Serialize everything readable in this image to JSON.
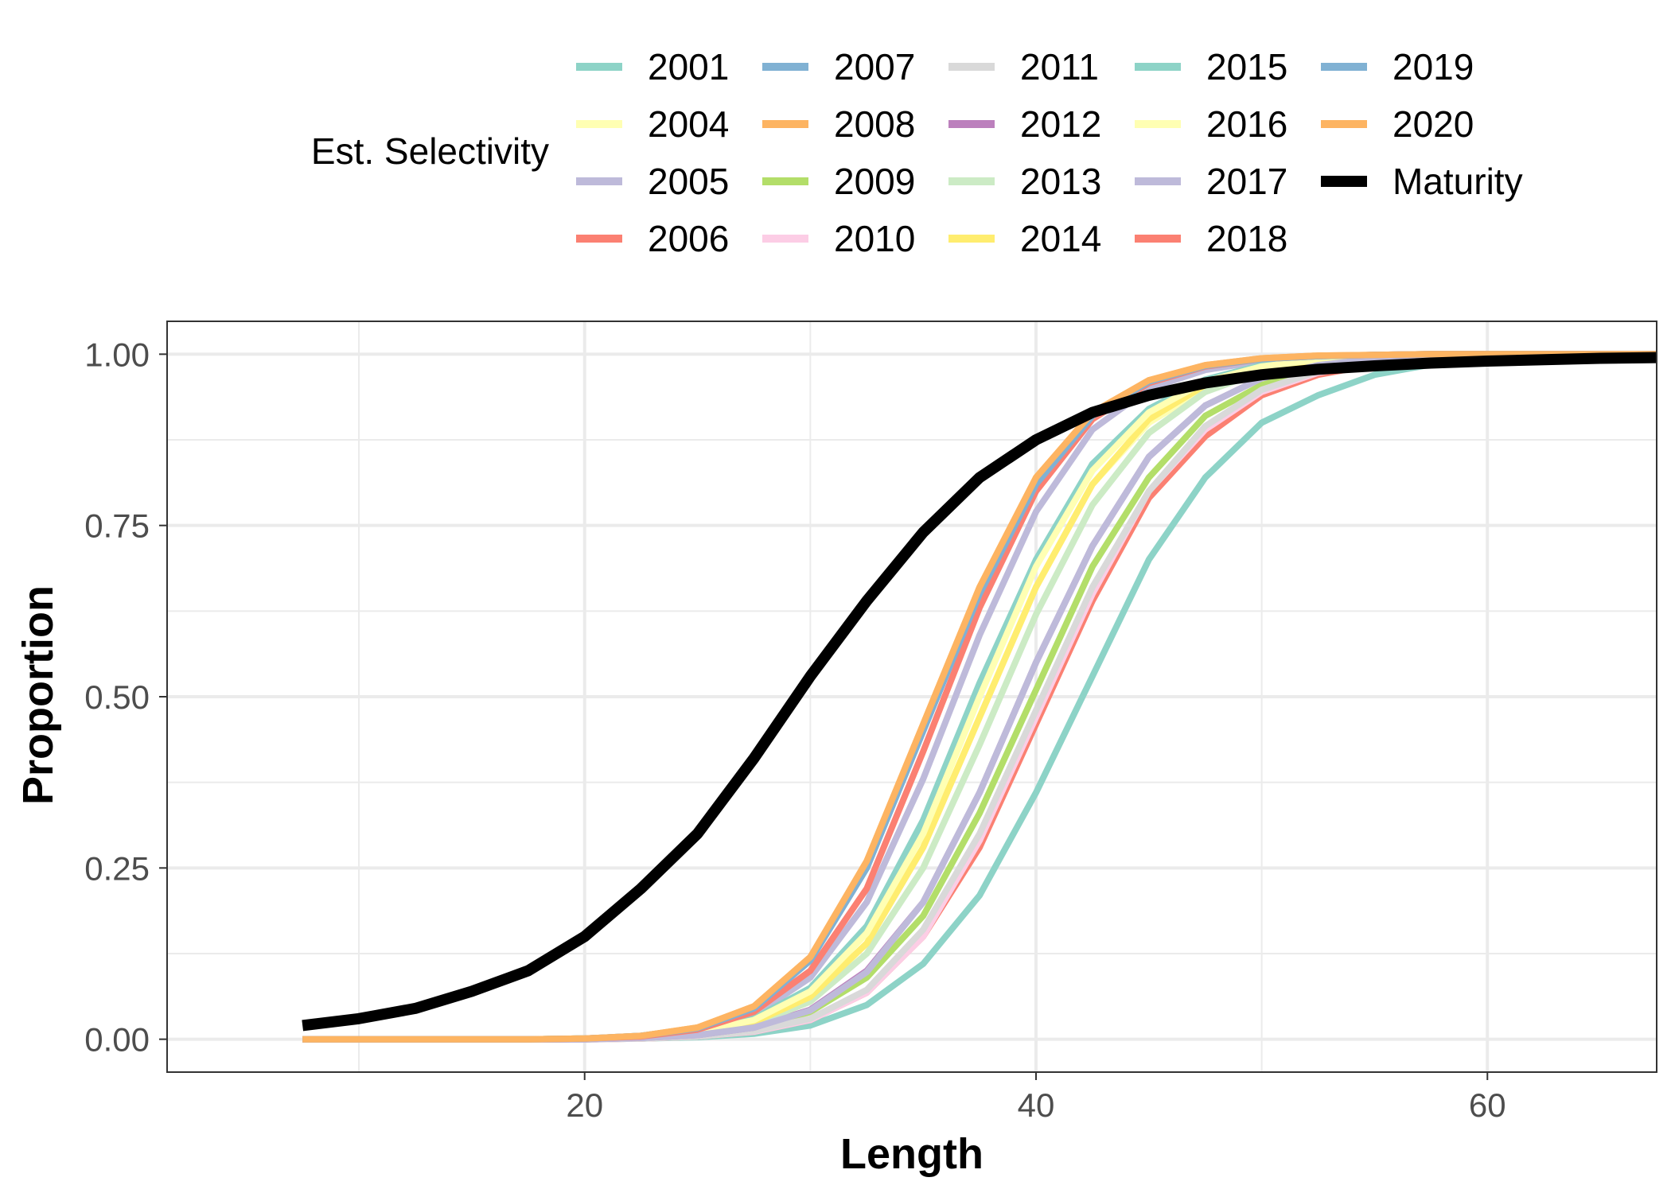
{
  "chart_data": {
    "type": "line",
    "xlabel": "Length",
    "ylabel": "Proportion",
    "xlim": [
      1.5,
      67.5
    ],
    "ylim": [
      -0.048,
      1.048
    ],
    "x_ticks": [
      20,
      40,
      60
    ],
    "x_tick_labels": [
      "20",
      "40",
      "60"
    ],
    "x_minor_ticks": [
      10,
      30,
      50
    ],
    "y_ticks": [
      0,
      0.25,
      0.5,
      0.75,
      1
    ],
    "y_tick_labels": [
      "0.00",
      "0.25",
      "0.50",
      "0.75",
      "1.00"
    ],
    "y_minor_ticks": [
      0.125,
      0.375,
      0.625,
      0.875
    ],
    "grid": true,
    "legend": {
      "title": "Est. Selectivity",
      "placement": "top",
      "columns": 5,
      "rows": 4
    },
    "x": [
      7.5,
      10,
      12.5,
      15,
      17.5,
      20,
      22.5,
      25,
      27.5,
      30,
      32.5,
      35,
      37.5,
      40,
      42.5,
      45,
      47.5,
      50,
      52.5,
      55,
      57.5,
      60,
      62.5,
      65,
      67.5
    ],
    "series": [
      {
        "name": "2001",
        "color": "#8DD3C7",
        "values": [
          0.0,
          0.0,
          0.0,
          0.0,
          0.0,
          0.0,
          0.001,
          0.003,
          0.008,
          0.02,
          0.05,
          0.11,
          0.21,
          0.36,
          0.53,
          0.7,
          0.82,
          0.9,
          0.94,
          0.97,
          0.985,
          0.993,
          0.997,
          0.998,
          0.999
        ]
      },
      {
        "name": "2004",
        "color": "#FFFFB3",
        "values": [
          0.0,
          0.0,
          0.0,
          0.0,
          0.0,
          0.001,
          0.003,
          0.009,
          0.025,
          0.06,
          0.14,
          0.28,
          0.47,
          0.66,
          0.81,
          0.9,
          0.95,
          0.975,
          0.988,
          0.994,
          0.997,
          0.999,
          0.999,
          1.0,
          1.0
        ]
      },
      {
        "name": "2005",
        "color": "#BEBADA",
        "values": [
          0.0,
          0.0,
          0.0,
          0.0,
          0.0,
          0.001,
          0.004,
          0.013,
          0.035,
          0.09,
          0.2,
          0.38,
          0.59,
          0.77,
          0.89,
          0.95,
          0.977,
          0.99,
          0.996,
          0.998,
          0.999,
          1.0,
          1.0,
          1.0,
          1.0
        ]
      },
      {
        "name": "2006",
        "color": "#FB8072",
        "values": [
          0.0,
          0.0,
          0.0,
          0.0,
          0.0,
          0.0,
          0.001,
          0.004,
          0.011,
          0.028,
          0.068,
          0.15,
          0.28,
          0.46,
          0.64,
          0.79,
          0.88,
          0.94,
          0.97,
          0.985,
          0.993,
          0.997,
          0.998,
          0.999,
          1.0
        ]
      },
      {
        "name": "2007",
        "color": "#80B1D3",
        "values": [
          0.0,
          0.0,
          0.0,
          0.0,
          0.0,
          0.001,
          0.005,
          0.016,
          0.045,
          0.115,
          0.25,
          0.45,
          0.65,
          0.81,
          0.91,
          0.96,
          0.983,
          0.993,
          0.997,
          0.999,
          1.0,
          1.0,
          1.0,
          1.0,
          1.0
        ]
      },
      {
        "name": "2008",
        "color": "#FDB462",
        "values": [
          0.0,
          0.0,
          0.0,
          0.0,
          0.0,
          0.001,
          0.005,
          0.017,
          0.048,
          0.12,
          0.26,
          0.46,
          0.66,
          0.82,
          0.915,
          0.962,
          0.984,
          0.994,
          0.998,
          0.999,
          1.0,
          1.0,
          1.0,
          1.0,
          1.0
        ]
      },
      {
        "name": "2009",
        "color": "#B3DE69",
        "values": [
          0.0,
          0.0,
          0.0,
          0.0,
          0.0,
          0.0,
          0.002,
          0.006,
          0.016,
          0.04,
          0.09,
          0.18,
          0.33,
          0.51,
          0.69,
          0.82,
          0.91,
          0.955,
          0.978,
          0.99,
          0.995,
          0.998,
          0.999,
          1.0,
          1.0
        ]
      },
      {
        "name": "2010",
        "color": "#FCCDE5",
        "values": [
          0.0,
          0.0,
          0.0,
          0.0,
          0.0,
          0.0,
          0.001,
          0.004,
          0.011,
          0.028,
          0.068,
          0.15,
          0.29,
          0.47,
          0.65,
          0.8,
          0.89,
          0.945,
          0.973,
          0.987,
          0.994,
          0.997,
          0.999,
          1.0,
          1.0
        ]
      },
      {
        "name": "2011",
        "color": "#D9D9D9",
        "values": [
          0.0,
          0.0,
          0.0,
          0.0,
          0.0,
          0.0,
          0.001,
          0.004,
          0.012,
          0.03,
          0.072,
          0.16,
          0.3,
          0.48,
          0.66,
          0.8,
          0.895,
          0.948,
          0.975,
          0.988,
          0.994,
          0.997,
          0.999,
          1.0,
          1.0
        ]
      },
      {
        "name": "2012",
        "color": "#BC80BD",
        "values": [
          0.0,
          0.0,
          0.0,
          0.0,
          0.0,
          0.0,
          0.002,
          0.006,
          0.017,
          0.043,
          0.1,
          0.2,
          0.36,
          0.55,
          0.72,
          0.85,
          0.925,
          0.965,
          0.984,
          0.993,
          0.997,
          0.999,
          1.0,
          1.0,
          1.0
        ]
      },
      {
        "name": "2013",
        "color": "#CCEBC5",
        "values": [
          0.0,
          0.0,
          0.0,
          0.0,
          0.0,
          0.001,
          0.003,
          0.008,
          0.022,
          0.055,
          0.125,
          0.25,
          0.43,
          0.62,
          0.78,
          0.885,
          0.945,
          0.975,
          0.989,
          0.995,
          0.998,
          0.999,
          1.0,
          1.0,
          1.0
        ]
      },
      {
        "name": "2014",
        "color": "#FFED6F",
        "values": [
          0.0,
          0.0,
          0.0,
          0.0,
          0.0,
          0.001,
          0.003,
          0.009,
          0.025,
          0.062,
          0.14,
          0.28,
          0.47,
          0.66,
          0.81,
          0.905,
          0.955,
          0.98,
          0.991,
          0.996,
          0.998,
          0.999,
          1.0,
          1.0,
          1.0
        ]
      },
      {
        "name": "2015",
        "color": "#8DD3C7",
        "values": [
          0.0,
          0.0,
          0.0,
          0.0,
          0.0,
          0.001,
          0.003,
          0.011,
          0.03,
          0.075,
          0.165,
          0.32,
          0.52,
          0.7,
          0.84,
          0.92,
          0.963,
          0.984,
          0.993,
          0.997,
          0.999,
          1.0,
          1.0,
          1.0,
          1.0
        ]
      },
      {
        "name": "2016",
        "color": "#FFFFB3",
        "values": [
          0.0,
          0.0,
          0.0,
          0.0,
          0.0,
          0.001,
          0.003,
          0.01,
          0.028,
          0.07,
          0.155,
          0.3,
          0.5,
          0.69,
          0.83,
          0.915,
          0.96,
          0.982,
          0.992,
          0.997,
          0.999,
          1.0,
          1.0,
          1.0,
          1.0
        ]
      },
      {
        "name": "2017",
        "color": "#BEBADA",
        "values": [
          0.0,
          0.0,
          0.0,
          0.0,
          0.0,
          0.0,
          0.002,
          0.006,
          0.017,
          0.042,
          0.098,
          0.2,
          0.36,
          0.55,
          0.72,
          0.85,
          0.925,
          0.965,
          0.984,
          0.993,
          0.997,
          0.999,
          1.0,
          1.0,
          1.0
        ]
      },
      {
        "name": "2018",
        "color": "#FB8072",
        "values": [
          0.0,
          0.0,
          0.0,
          0.0,
          0.0,
          0.001,
          0.004,
          0.014,
          0.04,
          0.1,
          0.22,
          0.42,
          0.63,
          0.8,
          0.905,
          0.958,
          0.982,
          0.993,
          0.997,
          0.999,
          1.0,
          1.0,
          1.0,
          1.0,
          1.0
        ]
      },
      {
        "name": "2019",
        "color": "#80B1D3",
        "values": [
          0.0,
          0.0,
          0.0,
          0.0,
          0.0,
          0.001,
          0.005,
          0.016,
          0.045,
          0.115,
          0.25,
          0.45,
          0.65,
          0.81,
          0.91,
          0.96,
          0.983,
          0.993,
          0.997,
          0.999,
          1.0,
          1.0,
          1.0,
          1.0,
          1.0
        ]
      },
      {
        "name": "2020",
        "color": "#FDB462",
        "values": [
          0.0,
          0.0,
          0.0,
          0.0,
          0.0,
          0.001,
          0.005,
          0.017,
          0.048,
          0.12,
          0.26,
          0.46,
          0.66,
          0.82,
          0.915,
          0.962,
          0.984,
          0.994,
          0.998,
          0.999,
          1.0,
          1.0,
          1.0,
          1.0,
          1.0
        ]
      },
      {
        "name": "Maturity",
        "color": "#000000",
        "values": [
          0.02,
          0.03,
          0.045,
          0.07,
          0.1,
          0.15,
          0.22,
          0.3,
          0.41,
          0.53,
          0.64,
          0.74,
          0.82,
          0.875,
          0.915,
          0.94,
          0.958,
          0.97,
          0.978,
          0.983,
          0.987,
          0.99,
          0.992,
          0.994,
          0.995
        ]
      }
    ]
  }
}
